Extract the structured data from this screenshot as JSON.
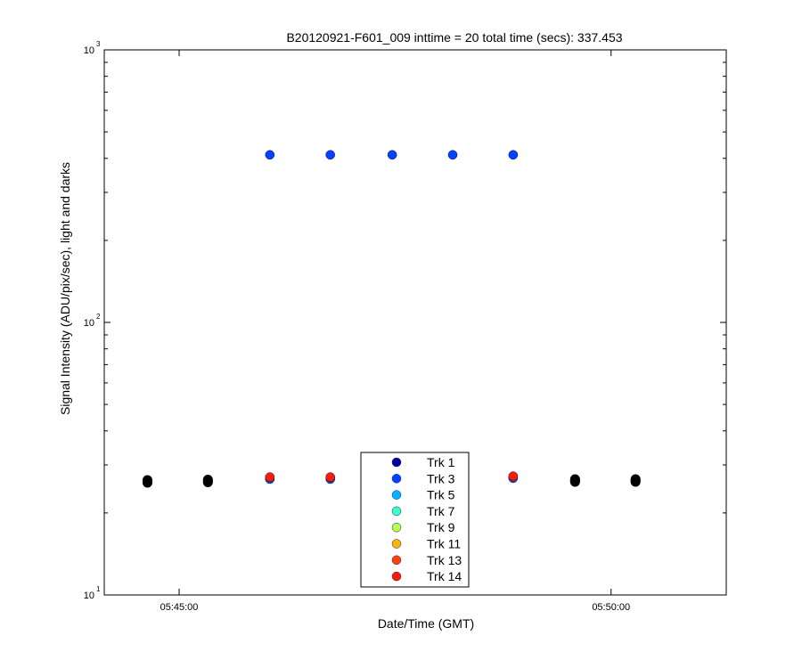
{
  "chart_data": {
    "type": "scatter",
    "title": "B20120921-F601_009 inttime = 20 total time (secs): 337.453",
    "xlabel": "Date/Time (GMT)",
    "ylabel": "Signal Intensity (ADU/pix/sec), light and darks",
    "y_scale": "log",
    "ylim": [
      10,
      1000
    ],
    "xlim": [
      "05:44:08",
      "05:51:20"
    ],
    "x_ticks": [
      "05:45:00",
      "05:50:00"
    ],
    "y_ticks": [
      {
        "base": "10",
        "exp": "1",
        "value": 10
      },
      {
        "base": "10",
        "exp": "2",
        "value": 100
      },
      {
        "base": "10",
        "exp": "3",
        "value": 1000
      }
    ],
    "grid": false,
    "legend_position": "bottom-center",
    "series": [
      {
        "name": "Trk 1",
        "color": "#00009c",
        "points": [
          {
            "x": "05:46:03",
            "y": 412
          },
          {
            "x": "05:46:45",
            "y": 412
          },
          {
            "x": "05:47:28",
            "y": 412
          },
          {
            "x": "05:48:10",
            "y": 412
          },
          {
            "x": "05:48:52",
            "y": 412
          }
        ]
      },
      {
        "name": "Trk 3",
        "color": "#0043ff",
        "points": [
          {
            "x": "05:46:03",
            "y": 412
          },
          {
            "x": "05:46:45",
            "y": 412
          },
          {
            "x": "05:47:28",
            "y": 412
          },
          {
            "x": "05:48:10",
            "y": 412
          },
          {
            "x": "05:48:52",
            "y": 412
          }
        ]
      },
      {
        "name": "Trk 5",
        "color": "#00b4ff",
        "points": [
          {
            "x": "05:46:03",
            "y": 26.6
          },
          {
            "x": "05:46:45",
            "y": 26.6
          },
          {
            "x": "05:48:52",
            "y": 26.8
          }
        ]
      },
      {
        "name": "Trk 7",
        "color": "#3cffc3",
        "points": [
          {
            "x": "05:46:03",
            "y": 26.7
          },
          {
            "x": "05:46:45",
            "y": 26.7
          },
          {
            "x": "05:48:52",
            "y": 26.9
          }
        ]
      },
      {
        "name": "Trk 9",
        "color": "#b4ff4b",
        "points": [
          {
            "x": "05:46:03",
            "y": 26.8
          },
          {
            "x": "05:46:45",
            "y": 26.8
          },
          {
            "x": "05:48:52",
            "y": 27.0
          }
        ]
      },
      {
        "name": "Trk 11",
        "color": "#ffb400",
        "points": [
          {
            "x": "05:46:03",
            "y": 26.9
          },
          {
            "x": "05:46:45",
            "y": 26.9
          },
          {
            "x": "05:48:52",
            "y": 27.1
          }
        ]
      },
      {
        "name": "Trk 13",
        "color": "#ff4300",
        "points": [
          {
            "x": "05:46:03",
            "y": 27.0
          },
          {
            "x": "05:46:45",
            "y": 27.0
          },
          {
            "x": "05:48:52",
            "y": 27.2
          }
        ]
      },
      {
        "name": "Trk 14",
        "color": "#ff1a00",
        "points": [
          {
            "x": "05:46:03",
            "y": 27.1
          },
          {
            "x": "05:46:45",
            "y": 27.1
          },
          {
            "x": "05:48:52",
            "y": 27.3
          }
        ]
      }
    ],
    "dark_points": {
      "color": "#000000",
      "points": [
        {
          "x": "05:44:38",
          "y": 25.8
        },
        {
          "x": "05:44:38",
          "y": 26.0
        },
        {
          "x": "05:44:38",
          "y": 26.2
        },
        {
          "x": "05:44:38",
          "y": 26.4
        },
        {
          "x": "05:45:20",
          "y": 25.9
        },
        {
          "x": "05:45:20",
          "y": 26.1
        },
        {
          "x": "05:45:20",
          "y": 26.3
        },
        {
          "x": "05:45:20",
          "y": 26.5
        },
        {
          "x": "05:49:35",
          "y": 26.0
        },
        {
          "x": "05:49:35",
          "y": 26.2
        },
        {
          "x": "05:49:35",
          "y": 26.4
        },
        {
          "x": "05:49:35",
          "y": 26.6
        },
        {
          "x": "05:50:17",
          "y": 26.0
        },
        {
          "x": "05:50:17",
          "y": 26.2
        },
        {
          "x": "05:50:17",
          "y": 26.4
        },
        {
          "x": "05:50:17",
          "y": 26.6
        }
      ]
    }
  }
}
